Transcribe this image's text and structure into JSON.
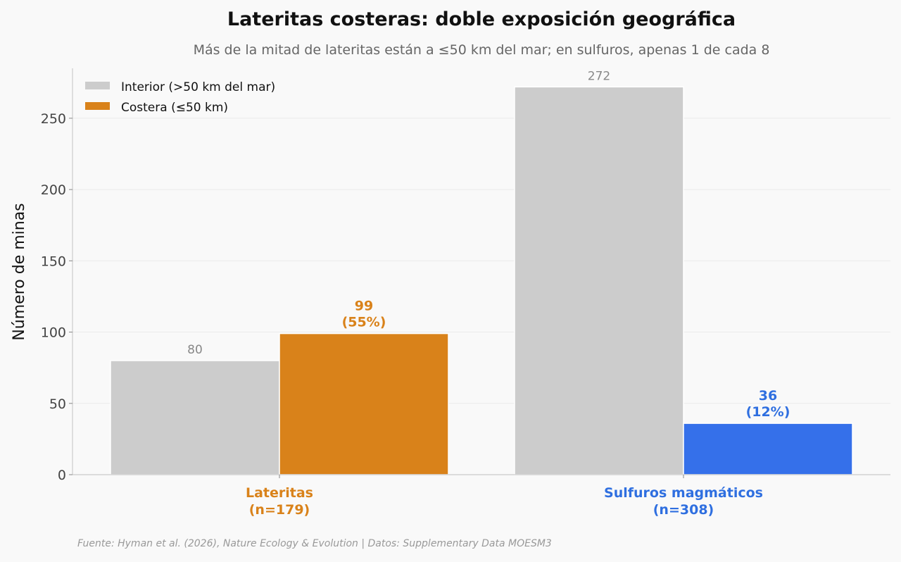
{
  "chart_data": {
    "type": "bar",
    "title": "Lateritas costeras: doble exposición geográfica",
    "subtitle": "Más de la mitad de lateritas están a ≤50 km del mar; en sulfuros, apenas 1 de cada 8",
    "ylabel": "Número de minas",
    "xlabel": "",
    "ylim": [
      0,
      285
    ],
    "yticks": [
      0,
      50,
      100,
      150,
      200,
      250
    ],
    "grid": true,
    "legend_position": "top-left",
    "categories": [
      {
        "name": "Lateritas",
        "n_label": "(n=179)",
        "color": "#d9821a"
      },
      {
        "name": "Sulfuros magmáticos",
        "n_label": "(n=308)",
        "color": "#2f6fe0"
      }
    ],
    "series": [
      {
        "name": "Interior (>50 km del mar)",
        "values": [
          80,
          272
        ],
        "labels": [
          "80",
          "272"
        ],
        "color": "#cccccc"
      },
      {
        "name": "Costera (≤50 km)",
        "values": [
          99,
          36
        ],
        "labels": [
          "99",
          "36"
        ],
        "pct_labels": [
          "(55%)",
          "(12%)"
        ],
        "colors": [
          "#d9821a",
          "#3570ea"
        ]
      }
    ]
  },
  "source": "Fuente: Hyman et al. (2026), Nature Ecology & Evolution | Datos: Supplementary Data MOESM3"
}
